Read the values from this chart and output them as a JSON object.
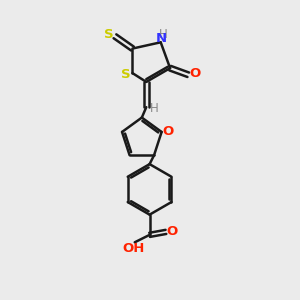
{
  "bg_color": "#ebebeb",
  "bond_color": "#1a1a1a",
  "bond_width": 1.8,
  "atom_colors": {
    "S": "#cccc00",
    "N": "#3333ff",
    "O": "#ff2200",
    "H": "#888888",
    "C": "#1a1a1a"
  },
  "font_size": 8.5,
  "fig_size": [
    3.0,
    3.0
  ],
  "dpi": 100
}
